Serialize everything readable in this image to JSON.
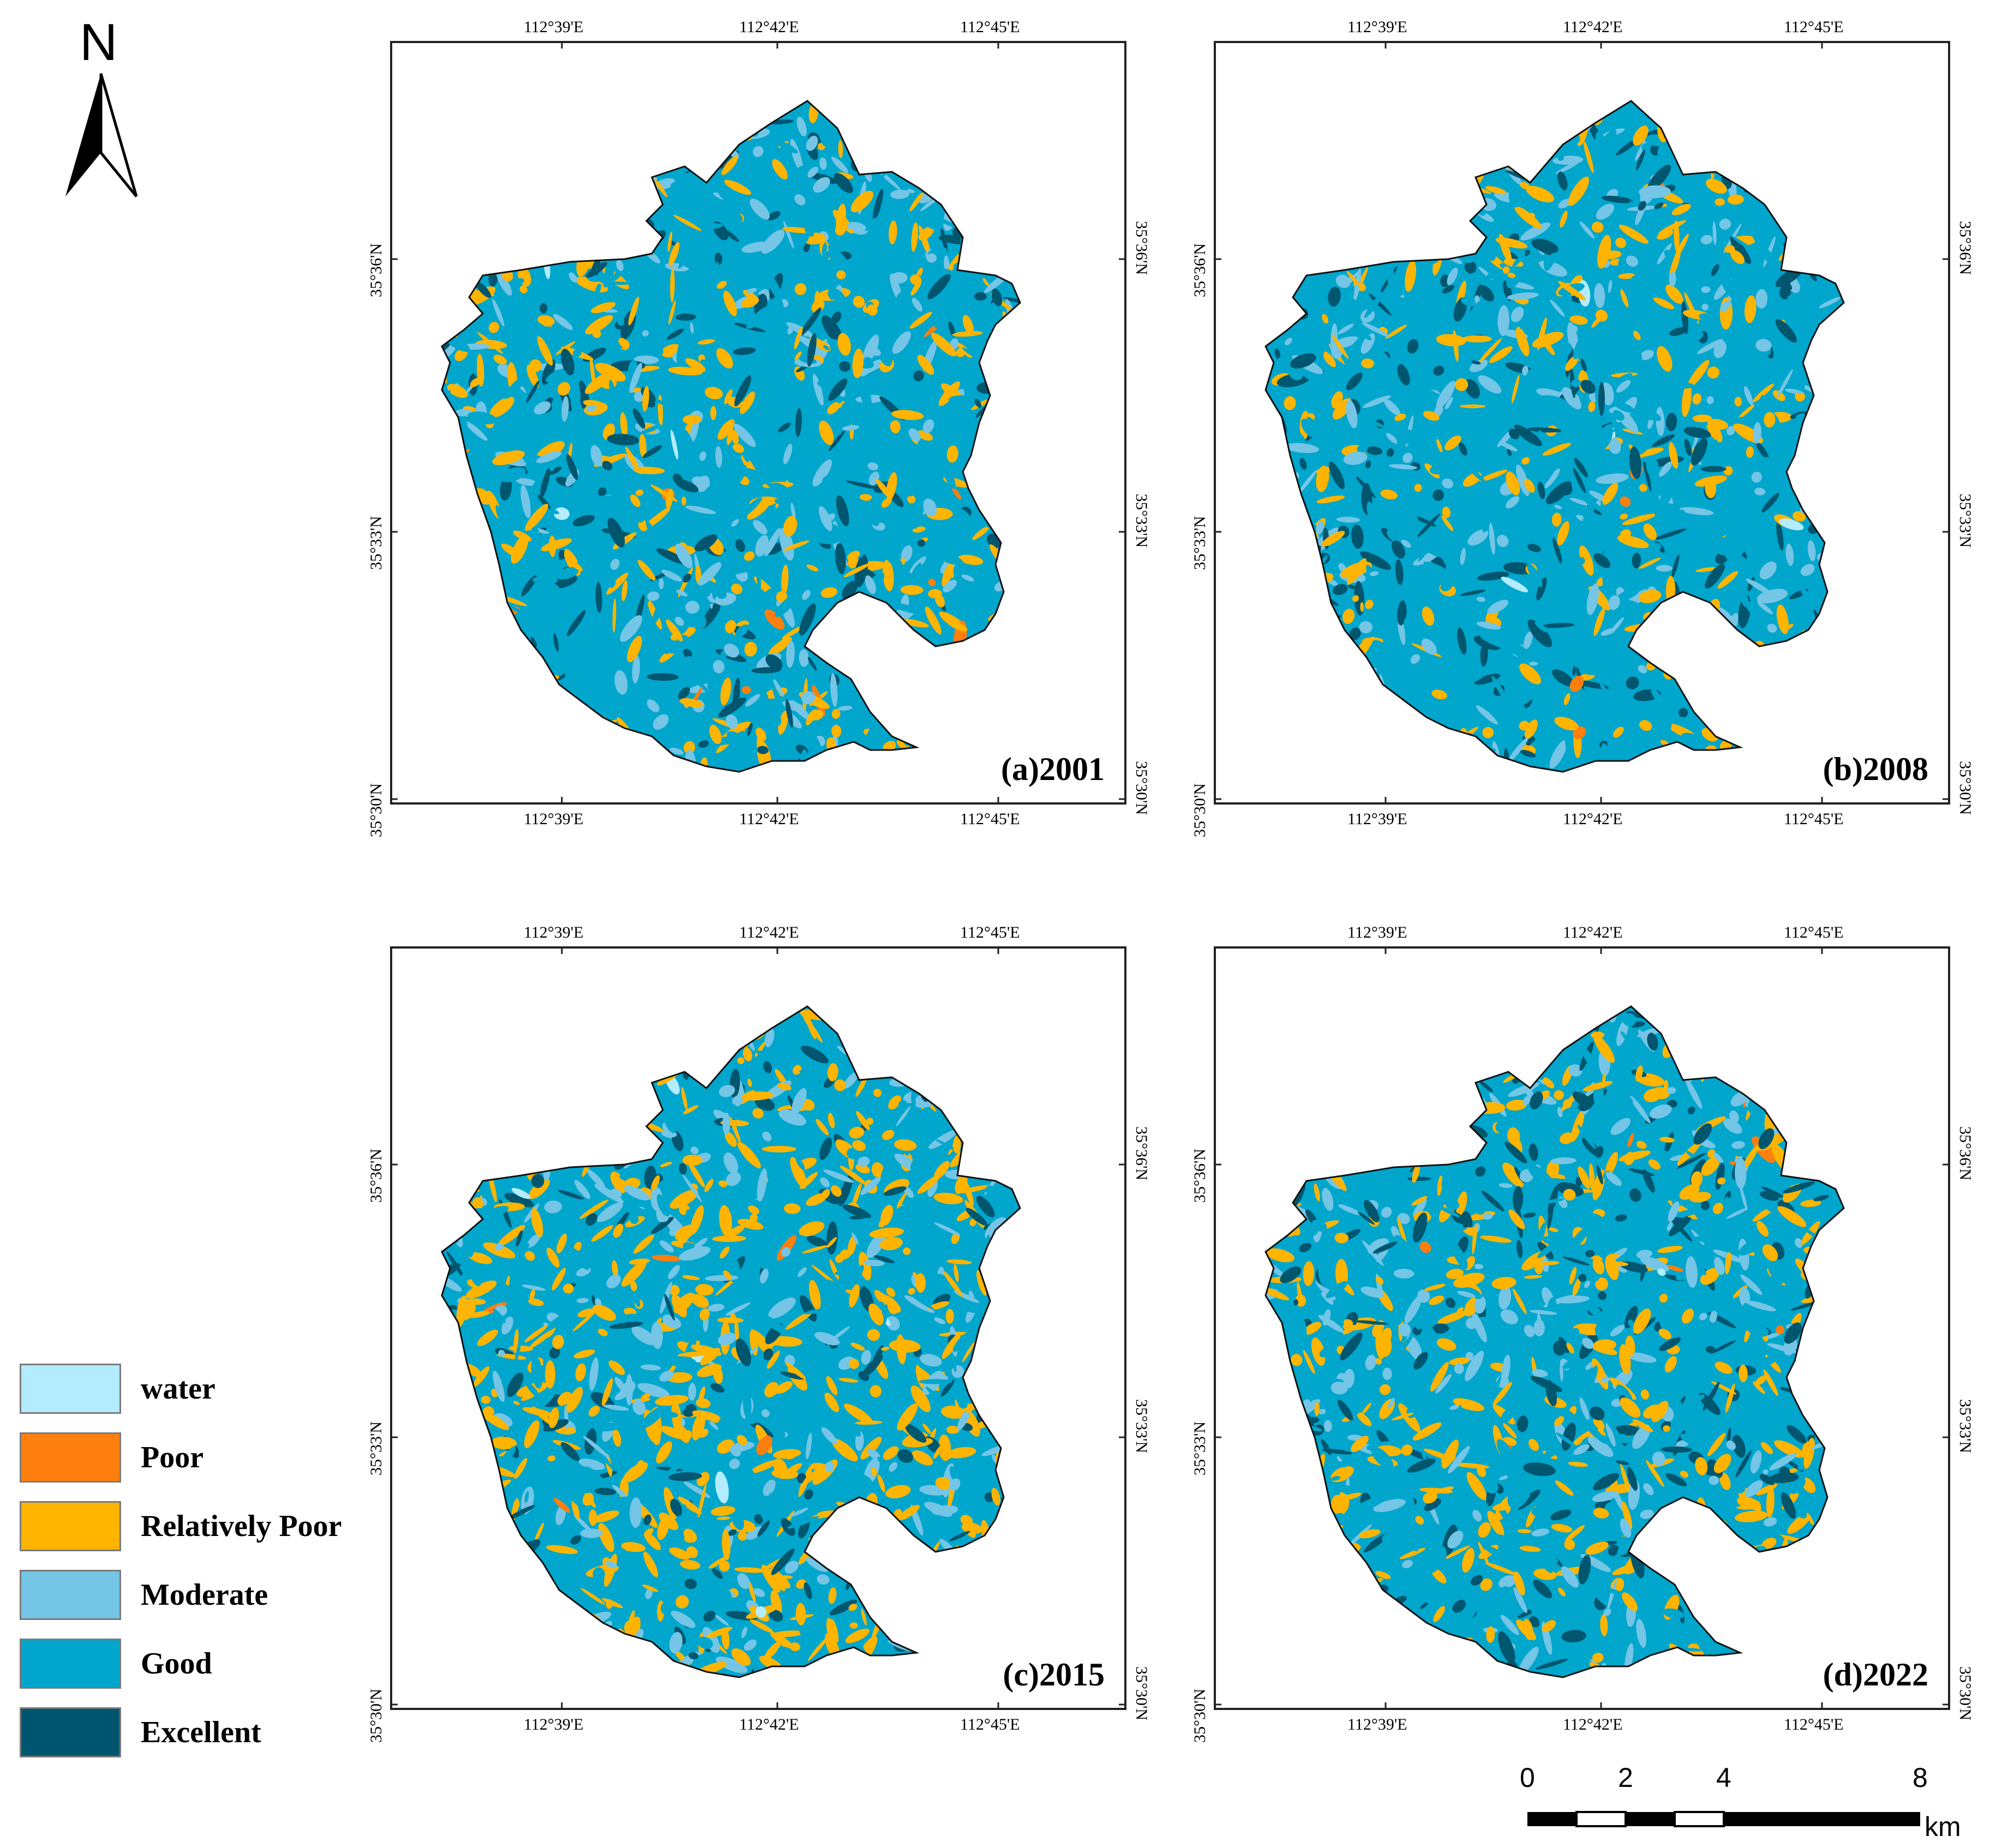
{
  "north_arrow": {
    "label": "N"
  },
  "panels": [
    {
      "title": "(a)2001",
      "seed": 11,
      "relpoor_share": 0.28,
      "excellent_share": 0.14
    },
    {
      "title": "(b)2008",
      "seed": 23,
      "relpoor_share": 0.22,
      "excellent_share": 0.16
    },
    {
      "title": "(c)2015",
      "seed": 37,
      "relpoor_share": 0.45,
      "excellent_share": 0.12
    },
    {
      "title": "(d)2022",
      "seed": 51,
      "relpoor_share": 0.3,
      "excellent_share": 0.22
    }
  ],
  "axes": {
    "longitude_ticks": [
      "112°39'E",
      "112°42'E",
      "112°45'E"
    ],
    "latitude_ticks": [
      "35°36'N",
      "35°33'N",
      "35°30'N"
    ]
  },
  "legend": [
    {
      "label": "water",
      "color": "#b3ecff"
    },
    {
      "label": "Poor",
      "color": "#ff7f0e"
    },
    {
      "label": "Relatively Poor",
      "color": "#ffb400"
    },
    {
      "label": "Moderate",
      "color": "#74c5e6"
    },
    {
      "label": "Good",
      "color": "#00a6cc"
    },
    {
      "label": "Excellent",
      "color": "#00566f"
    }
  ],
  "scale_bar": {
    "ticks": [
      "0",
      "2",
      "4",
      "8"
    ],
    "unit": "km"
  }
}
